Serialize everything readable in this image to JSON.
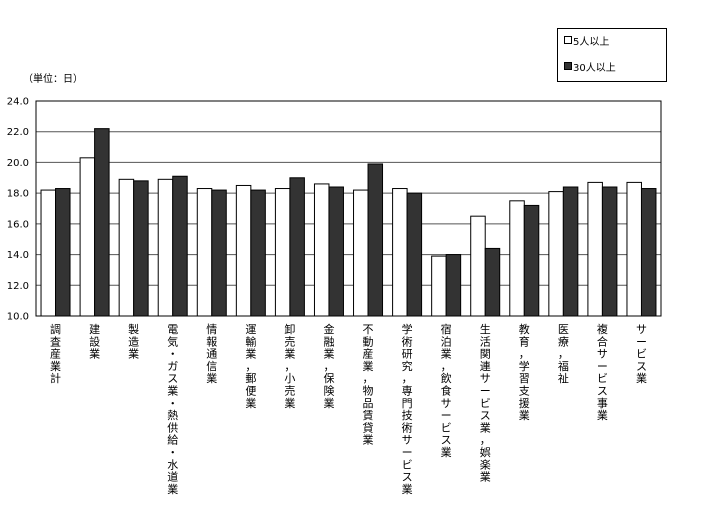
{
  "unit_label": "（単位：日）",
  "chart_data": {
    "type": "bar",
    "categories": [
      "調査産業計",
      "建設業",
      "製造業",
      "電気・ガス業・熱供給・水道業",
      "情報通信業",
      "運輸業，郵便業",
      "卸売業，小売業",
      "金融業，保険業",
      "不動産業，物品賃貸業",
      "学術研究，専門技術サービス業",
      "宿泊業，飲食サービス業",
      "生活関連サービス業，娯楽業",
      "教育，学習支援業",
      "医療，福祉",
      "複合サービス事業",
      "サービス業"
    ],
    "series": [
      {
        "name": "5人以上",
        "color": "#ffffff",
        "values": [
          18.2,
          20.3,
          18.9,
          18.9,
          18.3,
          18.5,
          18.3,
          18.6,
          18.2,
          18.3,
          13.9,
          16.5,
          17.5,
          18.1,
          18.7,
          18.7
        ]
      },
      {
        "name": "30人以上",
        "color": "#333333",
        "values": [
          18.3,
          22.2,
          18.8,
          19.1,
          18.2,
          18.2,
          19.0,
          18.4,
          19.9,
          18.0,
          14.0,
          14.4,
          17.2,
          18.4,
          18.4,
          18.3
        ]
      }
    ],
    "ylim": [
      10.0,
      24.0
    ],
    "yticks": [
      "10.0",
      "12.0",
      "14.0",
      "16.0",
      "18.0",
      "20.0",
      "22.0",
      "24.0"
    ],
    "grid": true,
    "legend": "top-right"
  }
}
